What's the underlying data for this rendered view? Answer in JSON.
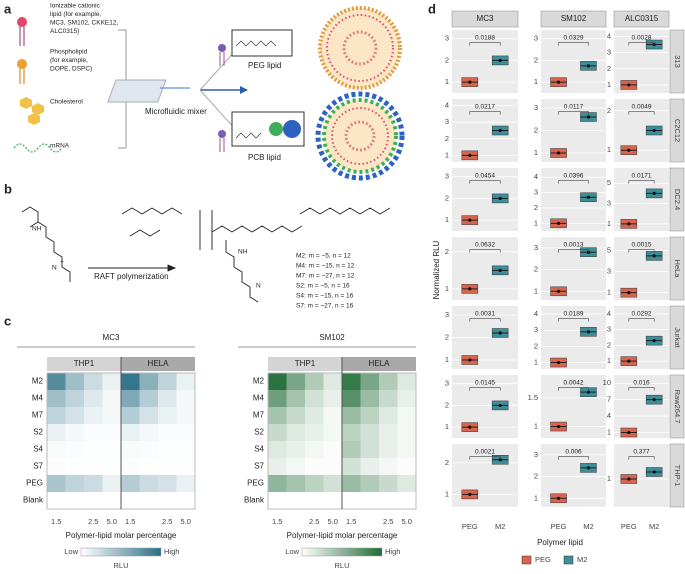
{
  "panel_labels": [
    "a",
    "b",
    "c",
    "d"
  ],
  "panel_a": {
    "components": [
      {
        "lines": [
          "Ionizable cationic",
          "lipid (for example,",
          "MC3, SM102, CKKE12,",
          "ALC0315)"
        ]
      },
      {
        "lines": [
          "Phospholipid",
          "(for example,",
          "DOPE, DSPC)"
        ]
      },
      {
        "lines": [
          "Cholesterol"
        ]
      },
      {
        "lines": [
          "mRNA"
        ]
      }
    ],
    "mixer": "Microfluidic mixer",
    "peg_lipid": "PEG lipid",
    "pcb_lipid": "PCB lipid"
  },
  "panel_b": {
    "reaction": "RAFT polymerization",
    "variants": [
      "M2: m = ~5, n = 12",
      "M4: m = ~15, n = 12",
      "M7: m = ~27, n = 12",
      "S2: m = ~5, n = 16",
      "S4: m = ~15, n = 16",
      "S7: m = ~27, n = 16"
    ]
  },
  "heatmaps": [
    {
      "title": "MC3",
      "groups": [
        "THP1",
        "HELA"
      ],
      "color": "#2a6f85",
      "rows": [
        "M2",
        "M4",
        "M7",
        "S2",
        "S4",
        "S7",
        "PEG",
        "Blank"
      ],
      "columns": [
        "1.5",
        null,
        "2.5",
        "5.0"
      ],
      "values": [
        [
          0.8,
          0.45,
          0.25,
          0.1,
          0.95,
          0.55,
          0.3,
          0.1
        ],
        [
          0.45,
          0.3,
          0.15,
          0.05,
          0.6,
          0.35,
          0.15,
          0.05
        ],
        [
          0.3,
          0.2,
          0.1,
          0.05,
          0.35,
          0.2,
          0.1,
          0.05
        ],
        [
          0.1,
          0.05,
          0.02,
          0.02,
          0.1,
          0.05,
          0.02,
          0.02
        ],
        [
          0.03,
          0.02,
          0.01,
          0.01,
          0.03,
          0.02,
          0.01,
          0.01
        ],
        [
          0.02,
          0.01,
          0.01,
          0.01,
          0.02,
          0.01,
          0.01,
          0.01
        ],
        [
          0.4,
          0.3,
          0.25,
          0.1,
          0.35,
          0.25,
          0.2,
          0.1
        ],
        [
          0,
          0,
          0,
          0,
          0,
          0,
          0,
          0
        ]
      ],
      "x_label": "Polymer-lipid molar percentage",
      "legend_low": "Low",
      "legend_high": "High",
      "legend_title": "RLU"
    },
    {
      "title": "SM102",
      "groups": [
        "THP1",
        "HELA"
      ],
      "color": "#1f6b35",
      "rows": [
        "M2",
        "M4",
        "M7",
        "S2",
        "S4",
        "S7",
        "PEG",
        "Blank"
      ],
      "columns": [
        "1.5",
        null,
        "2.5",
        "5.0"
      ],
      "values": [
        [
          0.95,
          0.6,
          0.35,
          0.15,
          0.9,
          0.6,
          0.35,
          0.15
        ],
        [
          0.65,
          0.4,
          0.2,
          0.1,
          0.75,
          0.45,
          0.25,
          0.1
        ],
        [
          0.4,
          0.25,
          0.15,
          0.05,
          0.45,
          0.3,
          0.15,
          0.05
        ],
        [
          0.25,
          0.15,
          0.1,
          0.05,
          0.3,
          0.2,
          0.1,
          0.05
        ],
        [
          0.15,
          0.1,
          0.05,
          0.02,
          0.35,
          0.2,
          0.1,
          0.05
        ],
        [
          0.1,
          0.05,
          0.02,
          0.02,
          0.2,
          0.1,
          0.05,
          0.02
        ],
        [
          0.5,
          0.4,
          0.3,
          0.2,
          0.45,
          0.35,
          0.25,
          0.15
        ],
        [
          0,
          0,
          0,
          0,
          0,
          0,
          0,
          0
        ]
      ],
      "x_label": "Polymer-lipid molar percentage",
      "legend_low": "Low",
      "legend_high": "High",
      "legend_title": "RLU"
    }
  ],
  "boxplots": {
    "columns": [
      "MC3",
      "SM102",
      "ALC0315"
    ],
    "rows": [
      "313",
      "C2C12",
      "DC2.4",
      "HeLa",
      "Jurkat",
      "Raw264.7",
      "THP-1"
    ],
    "y_label": "Normalized RLU",
    "x_label": "Polymer lipid",
    "groups": [
      "PEG",
      "M2"
    ],
    "colors": [
      "#d9644e",
      "#3a8f9a"
    ],
    "panels": [
      [
        {
          "ylim": [
            0.5,
            3.4
          ],
          "yticks": [
            1,
            2,
            3
          ],
          "values": [
            1,
            2
          ],
          "p": "0.0188"
        },
        {
          "ylim": [
            0.5,
            3.4
          ],
          "yticks": [
            1,
            2,
            3
          ],
          "values": [
            1,
            1.75
          ],
          "p": "0.0329"
        },
        {
          "ylim": [
            0.5,
            4.4
          ],
          "yticks": [
            1,
            2,
            3,
            4
          ],
          "values": [
            1,
            3.5
          ],
          "p": "0.0028"
        }
      ],
      [
        {
          "ylim": [
            0.6,
            4.4
          ],
          "yticks": [
            1,
            2,
            3,
            4
          ],
          "values": [
            1,
            2.5
          ],
          "p": "0.0217"
        },
        {
          "ylim": [
            0.6,
            3.4
          ],
          "yticks": [
            1,
            2,
            3
          ],
          "values": [
            1,
            2.6
          ],
          "p": "0.0117"
        },
        {
          "ylim": [
            0.7,
            2.3
          ],
          "yticks": [
            1,
            2
          ],
          "values": [
            1,
            1.5
          ],
          "p": "0.0049"
        }
      ],
      [
        {
          "ylim": [
            0.5,
            3.4
          ],
          "yticks": [
            1,
            2,
            3
          ],
          "values": [
            1,
            2
          ],
          "p": "0.0454"
        },
        {
          "ylim": [
            0.5,
            4.6
          ],
          "yticks": [
            1,
            2,
            3,
            4
          ],
          "values": [
            1,
            2.7
          ],
          "p": "0.0396"
        },
        {
          "ylim": [
            0.3,
            6.5
          ],
          "yticks": [
            1,
            3,
            5
          ],
          "values": [
            1,
            4
          ],
          "p": "0.0171"
        }
      ],
      [
        {
          "ylim": [
            0.7,
            2.4
          ],
          "yticks": [
            1,
            2
          ],
          "values": [
            1,
            1.5
          ],
          "p": "0.0632"
        },
        {
          "ylim": [
            0.6,
            3.5
          ],
          "yticks": [
            1,
            2,
            3
          ],
          "values": [
            1,
            2.8
          ],
          "p": "0.0013"
        },
        {
          "ylim": [
            0.3,
            6.3
          ],
          "yticks": [
            1,
            3,
            5
          ],
          "values": [
            1,
            4.5
          ],
          "p": "0.0015"
        }
      ],
      [
        {
          "ylim": [
            0.6,
            3.4
          ],
          "yticks": [
            1,
            2,
            3
          ],
          "values": [
            1,
            2.2
          ],
          "p": "0.0031"
        },
        {
          "ylim": [
            0.6,
            4.5
          ],
          "yticks": [
            1,
            2,
            3,
            4
          ],
          "values": [
            1,
            2.9
          ],
          "p": "0.0189"
        },
        {
          "ylim": [
            0.5,
            4.5
          ],
          "yticks": [
            1,
            2,
            3,
            4
          ],
          "values": [
            1,
            2.3
          ],
          "p": "0.0292"
        }
      ],
      [
        {
          "ylim": [
            0.5,
            3.4
          ],
          "yticks": [
            1,
            2,
            3
          ],
          "values": [
            1,
            2
          ],
          "p": "0.0145"
        },
        {
          "ylim": [
            0.8,
            1.9
          ],
          "yticks": [
            1,
            1.5
          ],
          "values": [
            1,
            1.6
          ],
          "p": "0.0042"
        },
        {
          "ylim": [
            0,
            11.5
          ],
          "yticks": [
            1,
            4,
            7,
            10
          ],
          "values": [
            1,
            7
          ],
          "p": "0.016"
        }
      ],
      [
        {
          "ylim": [
            0.6,
            2.6
          ],
          "yticks": [
            1,
            2
          ],
          "values": [
            1,
            2.1
          ],
          "p": "0.0021"
        },
        {
          "ylim": [
            0.6,
            3.5
          ],
          "yticks": [
            1,
            2,
            3
          ],
          "values": [
            1,
            2.4
          ],
          "p": "0.006"
        },
        {
          "ylim": [
            0.6,
            1.5
          ],
          "yticks": [
            1
          ],
          "values": [
            1,
            1.1
          ],
          "p": "0.377"
        }
      ]
    ]
  }
}
